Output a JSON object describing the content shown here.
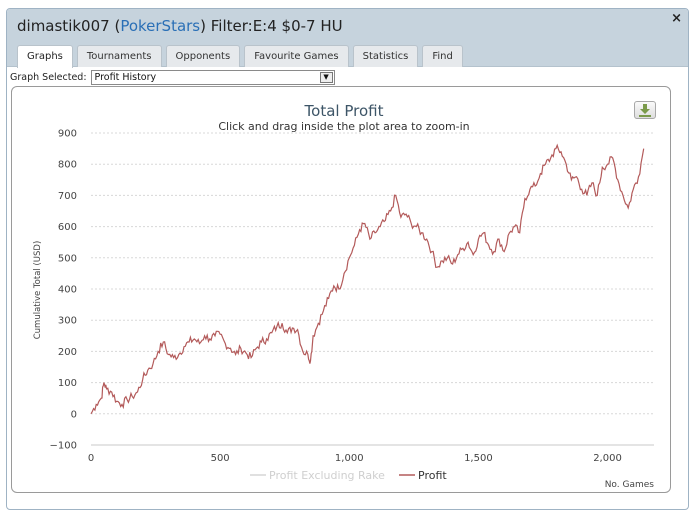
{
  "window": {
    "user": "dimastik007",
    "site": "PokerStars",
    "filter": "Filter:E:4 $0-7 HU",
    "close_label": "×"
  },
  "tabs": [
    {
      "label": "Graphs",
      "active": true
    },
    {
      "label": "Tournaments",
      "active": false
    },
    {
      "label": "Opponents",
      "active": false
    },
    {
      "label": "Favourite Games",
      "active": false
    },
    {
      "label": "Statistics",
      "active": false
    },
    {
      "label": "Find",
      "active": false
    }
  ],
  "graph_selector": {
    "label": "Graph Selected:",
    "value": "Profit History",
    "arrow": "▼"
  },
  "icons": {
    "download": "download-icon"
  },
  "colors": {
    "profit_line": "#b35a5a",
    "excluding_rake_line": "#d6d6d6",
    "title_blue": "#2a6fb6"
  },
  "chart_data": {
    "type": "line",
    "title": "Total Profit",
    "subtitle": "Click and drag inside the plot area to zoom-in",
    "xlabel": "No. Games",
    "ylabel": "Cumulative Total (USD)",
    "xlim": [
      0,
      2180
    ],
    "ylim": [
      -100,
      900
    ],
    "x_ticks": [
      0,
      500,
      1000,
      1500,
      2000
    ],
    "x_tick_labels": [
      "0",
      "500",
      "1,000",
      "1,500",
      "2,000"
    ],
    "y_ticks": [
      -100,
      0,
      100,
      200,
      300,
      400,
      500,
      600,
      700,
      800,
      900
    ],
    "y_tick_labels": [
      "−100",
      "0",
      "100",
      "200",
      "300",
      "400",
      "500",
      "600",
      "700",
      "800",
      "900"
    ],
    "legend": [
      "Profit Excluding Rake",
      "Profit"
    ],
    "legend_position": "bottom-center",
    "series": [
      {
        "name": "Profit",
        "x": [
          0,
          20,
          40,
          50,
          60,
          80,
          100,
          120,
          140,
          160,
          180,
          200,
          220,
          240,
          260,
          280,
          300,
          320,
          340,
          360,
          380,
          400,
          420,
          440,
          460,
          480,
          500,
          520,
          540,
          560,
          580,
          600,
          620,
          640,
          660,
          680,
          700,
          720,
          740,
          760,
          780,
          800,
          820,
          840,
          850,
          860,
          880,
          900,
          920,
          940,
          960,
          980,
          1000,
          1020,
          1040,
          1060,
          1080,
          1100,
          1120,
          1140,
          1160,
          1180,
          1200,
          1220,
          1240,
          1260,
          1280,
          1300,
          1320,
          1340,
          1360,
          1380,
          1400,
          1420,
          1440,
          1460,
          1480,
          1500,
          1520,
          1540,
          1560,
          1580,
          1600,
          1620,
          1640,
          1660,
          1680,
          1700,
          1720,
          1740,
          1760,
          1780,
          1800,
          1820,
          1840,
          1860,
          1880,
          1900,
          1920,
          1940,
          1960,
          1980,
          2000,
          2020,
          2040,
          2060,
          2080,
          2100,
          2120,
          2140
        ],
        "values": [
          0,
          30,
          50,
          100,
          80,
          70,
          40,
          30,
          45,
          55,
          70,
          110,
          140,
          160,
          200,
          230,
          190,
          180,
          190,
          215,
          230,
          240,
          225,
          250,
          240,
          250,
          255,
          225,
          210,
          190,
          210,
          195,
          180,
          210,
          230,
          240,
          260,
          280,
          290,
          260,
          275,
          270,
          200,
          190,
          170,
          250,
          290,
          330,
          370,
          410,
          400,
          450,
          500,
          540,
          590,
          610,
          560,
          580,
          600,
          620,
          650,
          700,
          630,
          640,
          610,
          600,
          580,
          560,
          520,
          470,
          490,
          500,
          480,
          510,
          530,
          550,
          510,
          560,
          580,
          540,
          520,
          560,
          520,
          580,
          600,
          580,
          690,
          720,
          730,
          770,
          800,
          820,
          850,
          840,
          800,
          750,
          760,
          720,
          700,
          740,
          700,
          790,
          800,
          820,
          750,
          700,
          660,
          720,
          760,
          850
        ]
      },
      {
        "name": "Profit Excluding Rake",
        "x": [],
        "values": []
      }
    ]
  }
}
